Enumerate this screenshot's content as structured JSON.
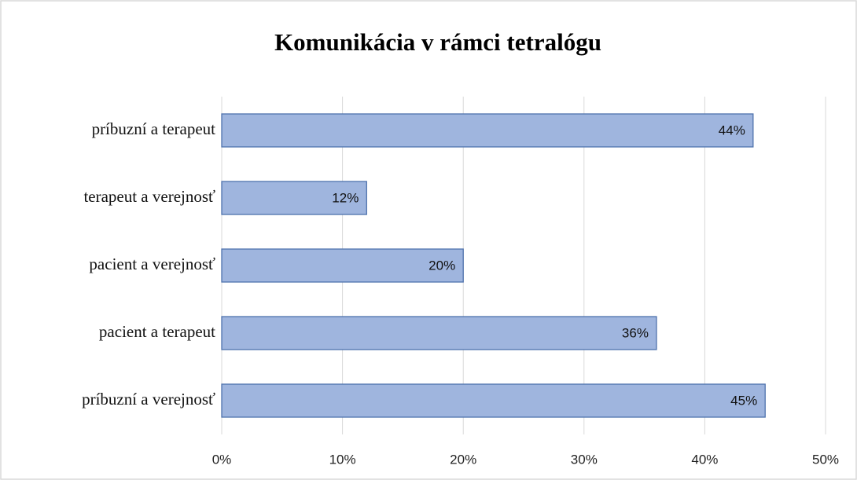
{
  "chart_data": {
    "type": "bar",
    "orientation": "horizontal",
    "title": "Komunikácia v rámci tetralógu",
    "categories": [
      "príbuzní a terapeut",
      "terapeut a verejnosť",
      "pacient a verejnosť",
      "pacient a terapeut",
      "príbuzní a verejnosť"
    ],
    "values": [
      44,
      12,
      20,
      36,
      45
    ],
    "value_labels": [
      "44%",
      "12%",
      "20%",
      "36%",
      "45%"
    ],
    "color": "#9fb5de",
    "xlim": [
      0,
      50
    ],
    "xticks": [
      {
        "value": 0,
        "label": "0%"
      },
      {
        "value": 10,
        "label": "10%"
      },
      {
        "value": 20,
        "label": "20%"
      },
      {
        "value": 30,
        "label": "30%"
      },
      {
        "value": 40,
        "label": "40%"
      },
      {
        "value": 50,
        "label": "50%"
      }
    ],
    "grid": true
  }
}
